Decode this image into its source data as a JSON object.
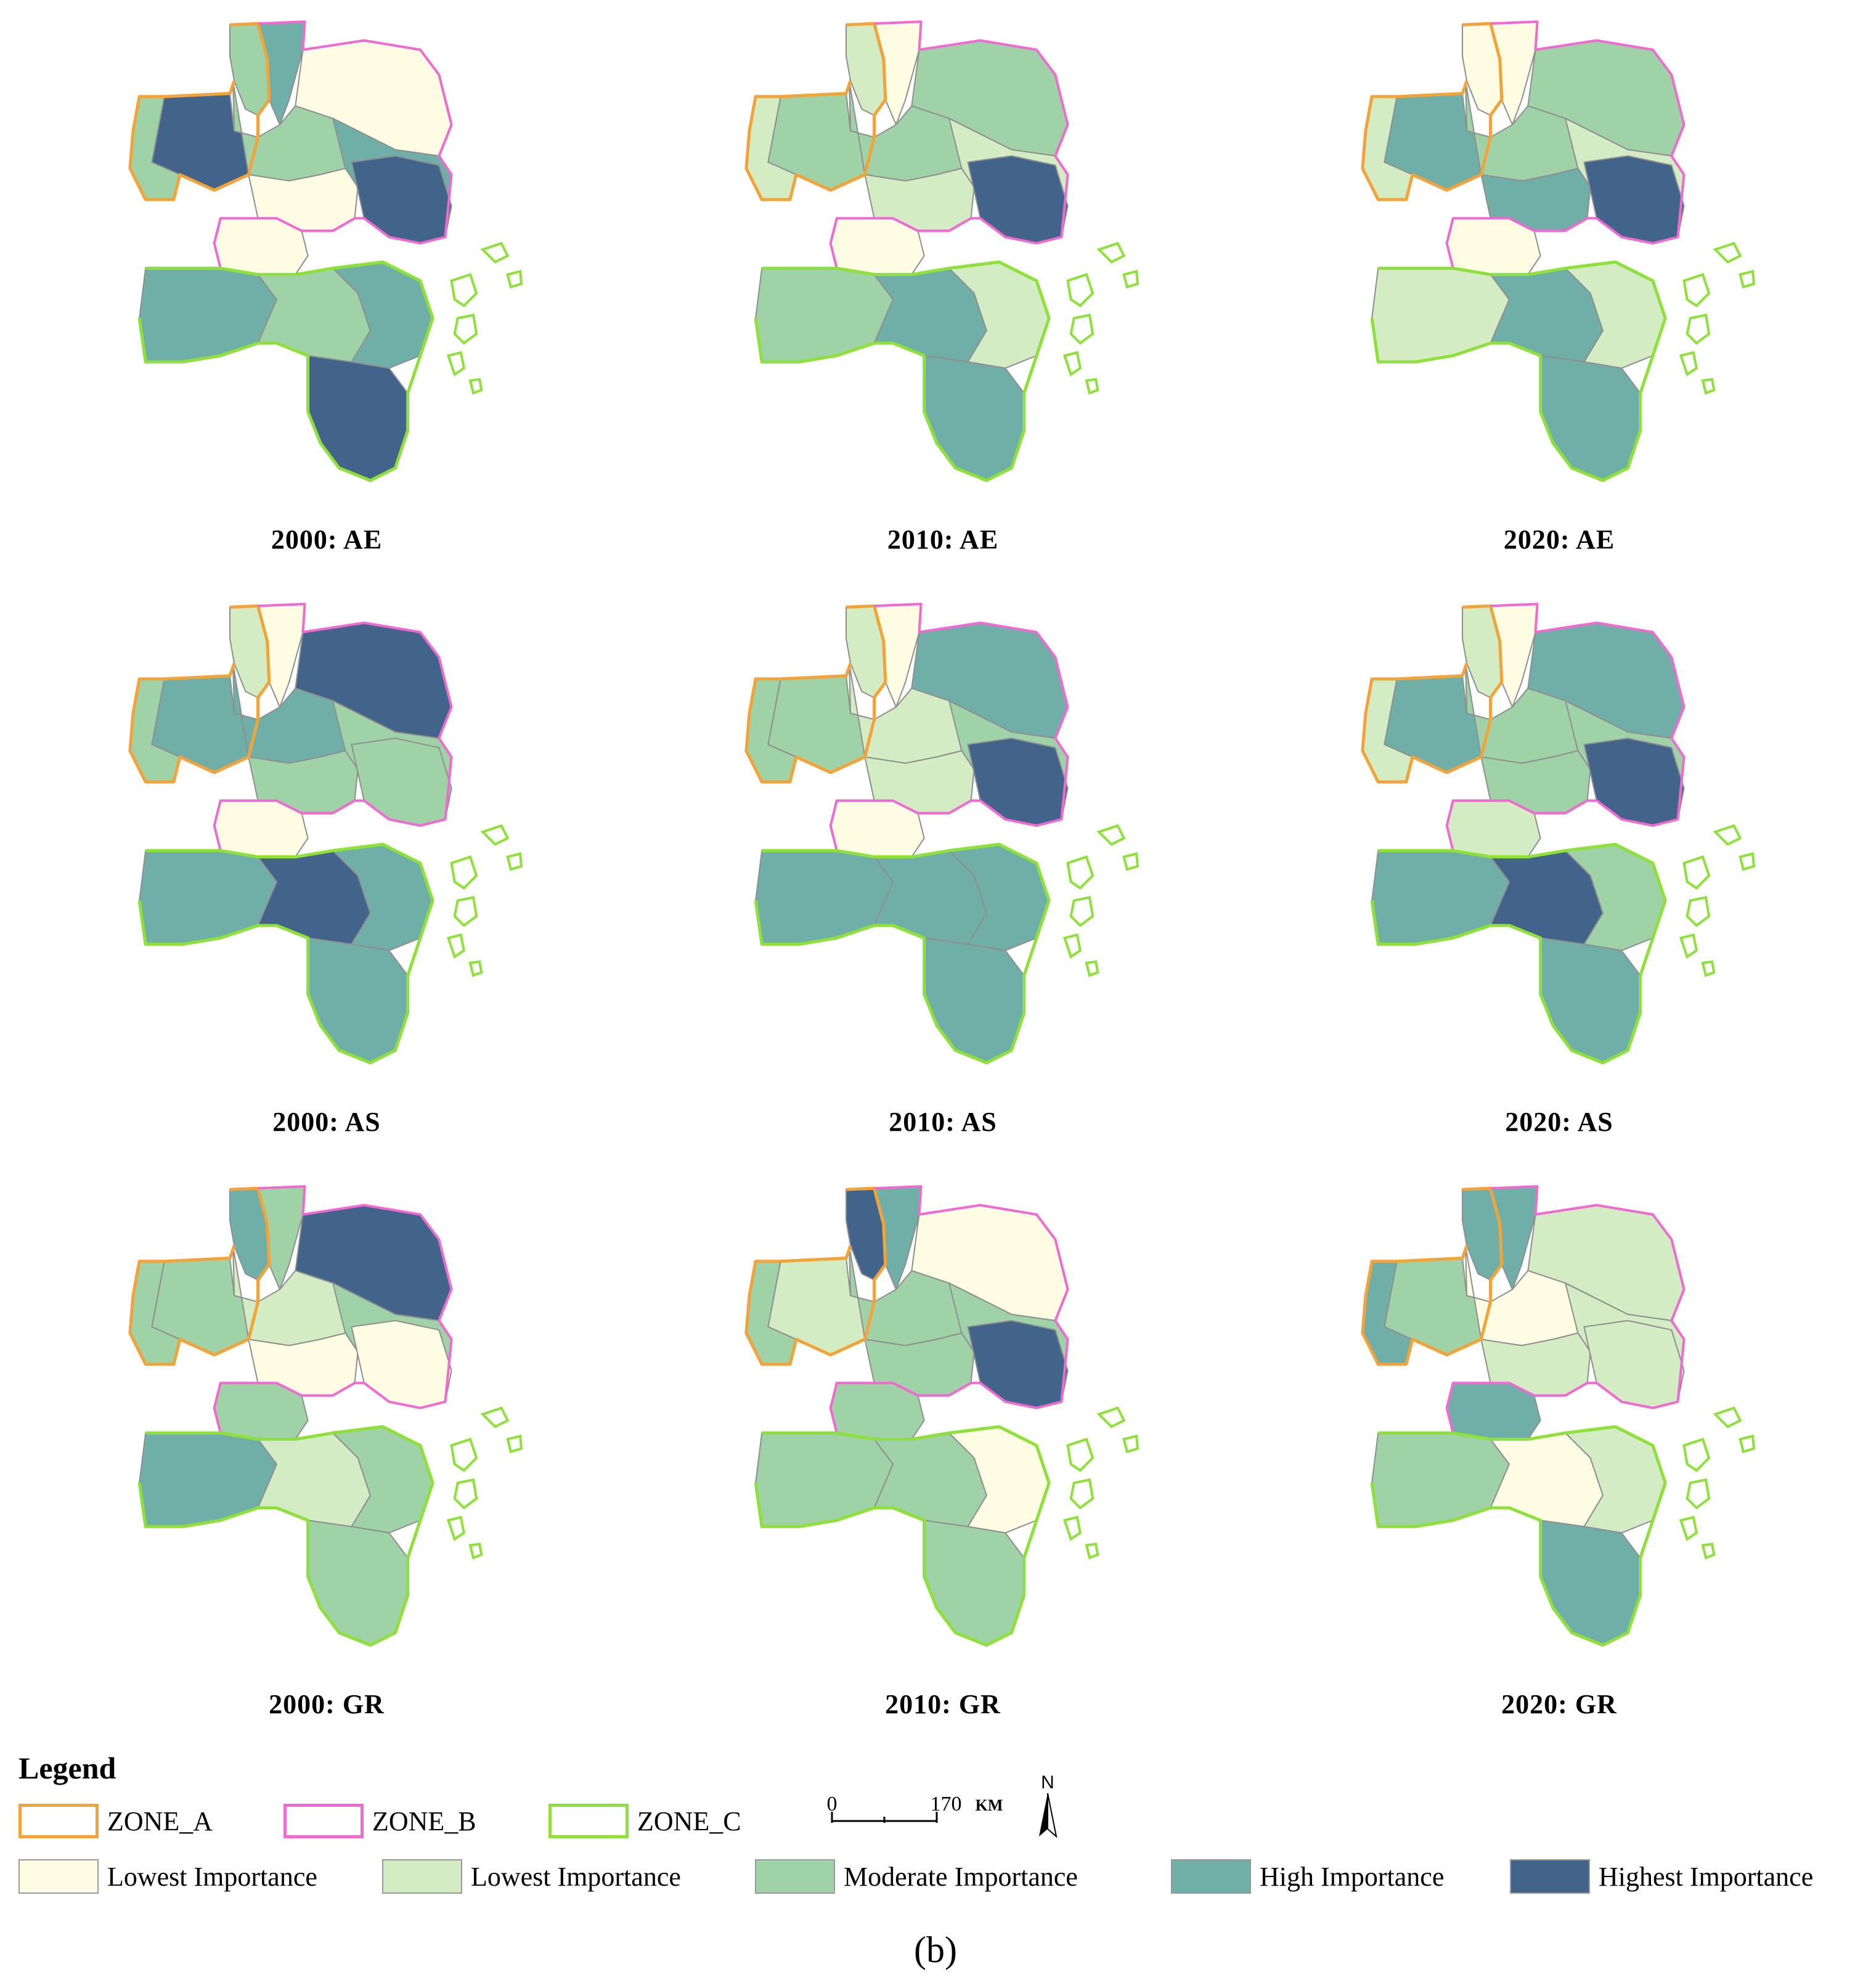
{
  "panels": [
    {
      "title": "2000: AE",
      "classes": [
        2,
        3,
        0,
        4,
        2,
        2,
        3,
        0,
        4,
        0,
        3,
        2,
        3,
        4
      ]
    },
    {
      "title": "2010: AE",
      "classes": [
        1,
        0,
        2,
        2,
        1,
        2,
        1,
        1,
        4,
        0,
        2,
        3,
        1,
        3
      ]
    },
    {
      "title": "2020: AE",
      "classes": [
        0,
        0,
        2,
        3,
        1,
        2,
        1,
        3,
        4,
        0,
        1,
        3,
        1,
        3
      ]
    },
    {
      "title": "2000: AS",
      "classes": [
        1,
        0,
        4,
        3,
        2,
        3,
        2,
        2,
        2,
        0,
        3,
        4,
        3,
        3
      ]
    },
    {
      "title": "2010: AS",
      "classes": [
        1,
        0,
        3,
        2,
        2,
        1,
        2,
        1,
        4,
        0,
        3,
        3,
        3,
        3
      ]
    },
    {
      "title": "2020: AS",
      "classes": [
        1,
        0,
        3,
        3,
        1,
        2,
        2,
        2,
        4,
        1,
        3,
        4,
        2,
        3
      ]
    },
    {
      "title": "2000: GR",
      "classes": [
        3,
        2,
        4,
        2,
        2,
        1,
        2,
        0,
        0,
        2,
        3,
        1,
        2,
        2
      ]
    },
    {
      "title": "2010: GR",
      "classes": [
        4,
        3,
        0,
        1,
        2,
        2,
        2,
        2,
        4,
        2,
        2,
        2,
        0,
        2
      ]
    },
    {
      "title": "2020: GR",
      "classes": [
        3,
        3,
        1,
        2,
        3,
        0,
        1,
        1,
        1,
        3,
        2,
        0,
        1,
        3
      ]
    }
  ],
  "legend": {
    "title": "Legend",
    "zones": [
      {
        "label": "ZONE_A",
        "color": "#f2a33a"
      },
      {
        "label": "ZONE_B",
        "color": "#f06ad2"
      },
      {
        "label": "ZONE_C",
        "color": "#8ee03a"
      }
    ],
    "classes": [
      {
        "label": "Lowest Importance",
        "color": "#fefde3"
      },
      {
        "label": "Lowest Importance",
        "color": "#d3ecc3"
      },
      {
        "label": "Moderate Importance",
        "color": "#9fd2a6"
      },
      {
        "label": "High Importance",
        "color": "#6fafa7"
      },
      {
        "label": "Highest Importance",
        "color": "#43648a"
      }
    ],
    "scale": {
      "start": "0",
      "end": "170",
      "unit": "KM",
      "north": "N"
    }
  },
  "caption": "(b)"
}
